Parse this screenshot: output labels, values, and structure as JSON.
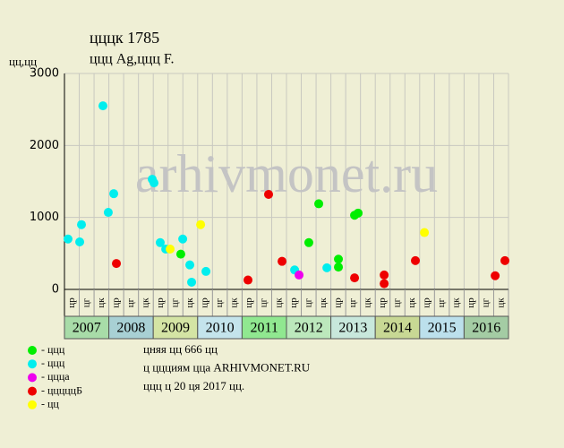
{
  "chart_data": {
    "type": "scatter",
    "title": "цццк 1785",
    "subtitle": "ццц Ag,ццц F.",
    "y_unit": "цц,цц",
    "watermark": "arhivmonet.ru",
    "ylim": [
      0,
      3000
    ],
    "yticks": [
      0,
      1000,
      2000,
      3000
    ],
    "xlim": [
      0,
      30
    ],
    "grid": true,
    "x_labels": [
      "цр",
      "цг",
      "цк",
      "цр",
      "цг",
      "цк",
      "цр",
      "цг",
      "цк",
      "цр",
      "цг",
      "цк",
      "цр",
      "цг",
      "цк",
      "цр",
      "цг",
      "цк",
      "цр",
      "цг",
      "цк",
      "цр",
      "цг",
      "цк",
      "цр",
      "цг",
      "цк",
      "цр",
      "цг",
      "цк"
    ],
    "years": [
      "2007",
      "2008",
      "2009",
      "2010",
      "2011",
      "2012",
      "2013",
      "2014",
      "2015",
      "2016"
    ],
    "year_colors": [
      "#a8dca8",
      "#a8d0d4",
      "#d4e4a4",
      "#c4e4ec",
      "#90e890",
      "#bce8bc",
      "#c8e8dc",
      "#c8d894",
      "#bce0ec",
      "#a4cca4"
    ],
    "series": [
      {
        "name": "- ццц",
        "color": "#00ee00",
        "x": [
          7.86,
          16.51,
          17.18,
          18.51,
          18.51,
          19.6,
          19.84
        ],
        "values": [
          490,
          650,
          1190,
          420,
          310,
          1030,
          1060
        ]
      },
      {
        "name": "- ццц",
        "color": "#00eeee",
        "x": [
          0.24,
          1.03,
          1.15,
          2.6,
          2.96,
          3.33,
          5.93,
          6.05,
          6.47,
          6.84,
          7.99,
          8.47,
          8.59,
          9.56,
          15.55,
          17.73
        ],
        "values": [
          700,
          660,
          900,
          2550,
          1070,
          1330,
          1530,
          1480,
          650,
          560,
          700,
          340,
          100,
          250,
          270,
          300
        ]
      },
      {
        "name": "- ццца",
        "color": "#ee00ee",
        "x": [
          15.85
        ],
        "values": [
          200
        ]
      },
      {
        "name": "- цццццБ",
        "color": "#ee0000",
        "x": [
          3.51,
          12.4,
          13.79,
          14.7,
          19.6,
          21.6,
          21.6,
          23.71,
          29.1,
          29.76
        ],
        "values": [
          360,
          130,
          1320,
          390,
          160,
          200,
          80,
          400,
          190,
          400
        ]
      },
      {
        "name": "- цц",
        "color": "#ffff00",
        "x": [
          7.14,
          9.2,
          24.32
        ],
        "values": [
          560,
          900,
          790
        ]
      }
    ],
    "notes": [
      "цняя цц 666 цц",
      "ц ццциям цца ARHIVMONET.RU",
      "ццц ц 20 ця 2017 цц."
    ]
  }
}
